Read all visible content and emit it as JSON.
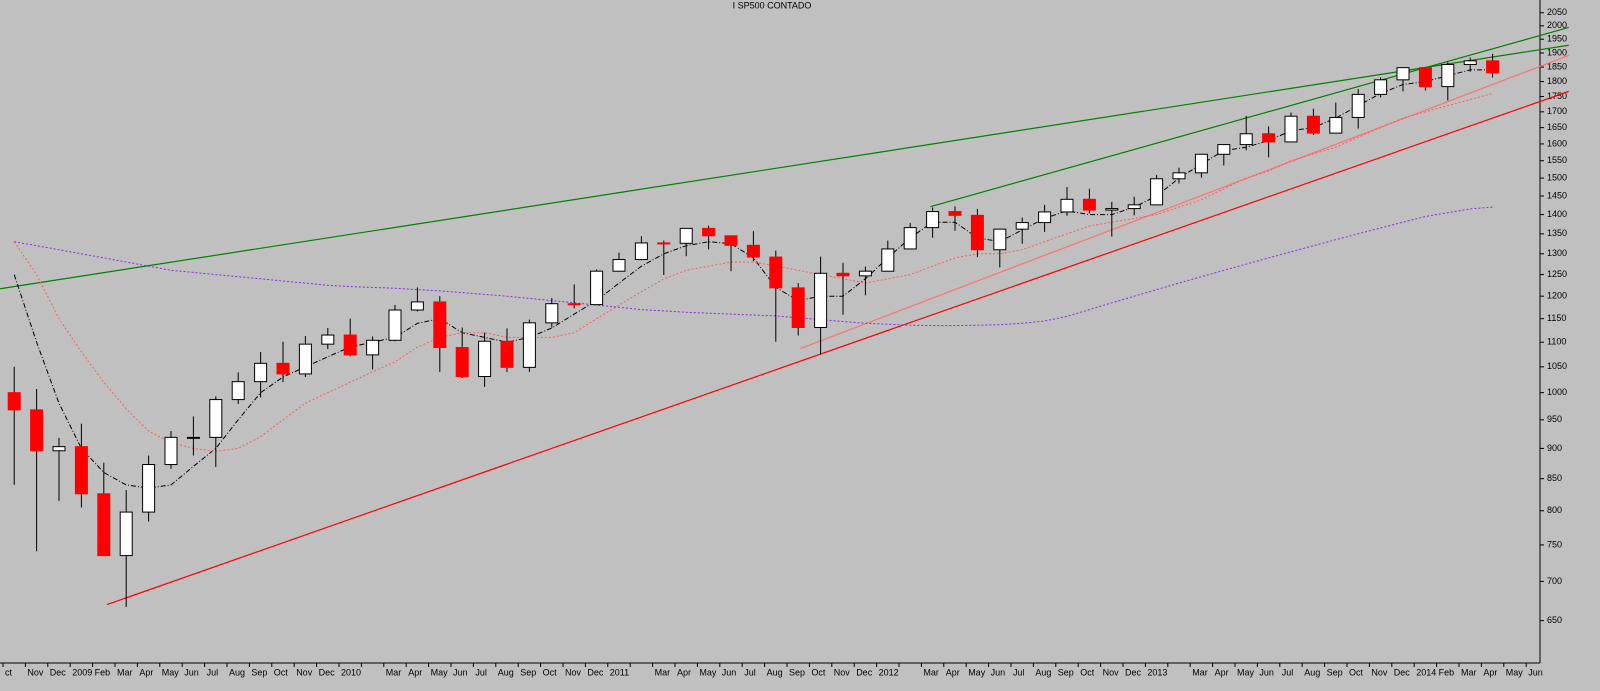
{
  "chart_data": {
    "type": "candlestick",
    "title": "I SP500 CONTADO",
    "log_scale": true,
    "categories": [
      "ct",
      "Nov",
      "Dec",
      "2009",
      "Feb",
      "Mar",
      "Apr",
      "May",
      "Jun",
      "Jul",
      "Aug",
      "Sep",
      "Oct",
      "Nov",
      "Dec",
      "2010",
      null,
      "Mar",
      "Apr",
      "May",
      "Jun",
      "Jul",
      "Aug",
      "Sep",
      "Oct",
      "Nov",
      "Dec",
      "2011",
      null,
      "Mar",
      "Apr",
      "May",
      "Jun",
      "Jul",
      "Aug",
      "Sep",
      "Oct",
      "Nov",
      "Dec",
      "2012",
      null,
      "Mar",
      "Apr",
      "May",
      "Jun",
      "Jul",
      "Aug",
      "Sep",
      "Oct",
      "Nov",
      "Dec",
      "2013",
      null,
      "Mar",
      "Apr",
      "May",
      "Jun",
      "Jul",
      "Aug",
      "Sep",
      "Oct",
      "Nov",
      "Dec",
      "2014",
      "Feb",
      "Mar",
      "Apr",
      "May",
      "Jun"
    ],
    "open": [
      1000,
      968,
      896,
      903,
      826,
      735,
      798,
      873,
      919,
      919,
      987,
      1021,
      1057,
      1036,
      1096,
      1115,
      1074,
      1104,
      1169,
      1187,
      1089,
      1031,
      1102,
      1049,
      1141,
      1183,
      1181,
      1258,
      1286,
      1327,
      1326,
      1364,
      1345,
      1321,
      1292,
      1219,
      1131,
      1253,
      1247,
      1258,
      1312,
      1366,
      1408,
      1398,
      1310,
      1362,
      1379,
      1407,
      1441,
      1412,
      1416,
      1426,
      1498,
      1515,
      1569,
      1598,
      1631,
      1606,
      1686,
      1633,
      1682,
      1757,
      1806,
      1848,
      1783,
      1859,
      1872,
      null,
      null
    ],
    "high": [
      1050,
      1007,
      918,
      943,
      876,
      832,
      888,
      930,
      956,
      993,
      1039,
      1080,
      1101,
      1113,
      1130,
      1150,
      1112,
      1180,
      1220,
      1200,
      1131,
      1120,
      1129,
      1148,
      1196,
      1227,
      1262,
      1303,
      1344,
      1333,
      1364,
      1371,
      1346,
      1357,
      1308,
      1230,
      1293,
      1278,
      1269,
      1333,
      1378,
      1419,
      1422,
      1415,
      1363,
      1392,
      1426,
      1475,
      1470,
      1434,
      1448,
      1509,
      1530,
      1570,
      1598,
      1687,
      1654,
      1698,
      1710,
      1730,
      1775,
      1814,
      1849,
      1850,
      1867,
      1884,
      1897,
      null,
      null
    ],
    "low": [
      840,
      741,
      815,
      805,
      735,
      667,
      784,
      866,
      888,
      869,
      979,
      991,
      1020,
      1030,
      1086,
      1071,
      1045,
      1102,
      1166,
      1040,
      1028,
      1011,
      1040,
      1040,
      1131,
      1173,
      1180,
      1257,
      1284,
      1249,
      1294,
      1311,
      1258,
      1282,
      1101,
      1114,
      1075,
      1159,
      1202,
      1258,
      1312,
      1340,
      1358,
      1292,
      1267,
      1325,
      1355,
      1397,
      1403,
      1343,
      1398,
      1426,
      1485,
      1501,
      1536,
      1581,
      1560,
      1605,
      1627,
      1633,
      1647,
      1747,
      1767,
      1770,
      1737,
      1834,
      1814,
      null,
      null
    ],
    "close": [
      968,
      896,
      903,
      826,
      735,
      798,
      873,
      919,
      919,
      987,
      1021,
      1057,
      1036,
      1096,
      1115,
      1074,
      1104,
      1169,
      1187,
      1089,
      1031,
      1102,
      1049,
      1141,
      1183,
      1181,
      1258,
      1286,
      1327,
      1326,
      1364,
      1345,
      1321,
      1292,
      1219,
      1131,
      1253,
      1247,
      1258,
      1312,
      1366,
      1408,
      1398,
      1310,
      1362,
      1379,
      1407,
      1441,
      1412,
      1416,
      1426,
      1498,
      1515,
      1569,
      1598,
      1631,
      1606,
      1686,
      1633,
      1682,
      1757,
      1806,
      1848,
      1783,
      1859,
      1872,
      1830,
      null,
      null
    ],
    "up_color": "#ffffff",
    "down_color": "#ff0000",
    "series": [
      {
        "color": "#000000",
        "style": "dash-dot",
        "values": [
          1250,
          1100,
          980,
          900,
          860,
          840,
          835,
          840,
          870,
          900,
          950,
          1000,
          1030,
          1050,
          1070,
          1090,
          1100,
          1110,
          1140,
          1150,
          1120,
          1110,
          1100,
          1110,
          1130,
          1160,
          1190,
          1230,
          1270,
          1300,
          1320,
          1330,
          1325,
          1290,
          1220,
          1190,
          1200,
          1200,
          1240,
          1290,
          1340,
          1380,
          1380,
          1340,
          1330,
          1360,
          1390,
          1410,
          1400,
          1400,
          1420,
          1450,
          1500,
          1540,
          1580,
          1590,
          1610,
          1640,
          1650,
          1680,
          1720,
          1760,
          1790,
          1800,
          1820,
          1840,
          1840,
          null,
          null
        ]
      },
      {
        "color": "#ff5a5a",
        "style": "dotted",
        "values": [
          1330,
          1250,
          1150,
          1080,
          1020,
          970,
          930,
          910,
          900,
          895,
          900,
          920,
          950,
          980,
          1000,
          1020,
          1040,
          1060,
          1090,
          1110,
          1120,
          1120,
          1110,
          1110,
          1110,
          1120,
          1150,
          1180,
          1210,
          1240,
          1260,
          1270,
          1280,
          1280,
          1270,
          1260,
          1250,
          1240,
          1230,
          1240,
          1250,
          1270,
          1290,
          1300,
          1300,
          1310,
          1330,
          1350,
          1370,
          1380,
          1390,
          1400,
          1420,
          1440,
          1470,
          1500,
          1520,
          1550,
          1570,
          1590,
          1620,
          1650,
          1680,
          1700,
          1720,
          1740,
          1760,
          null,
          null
        ]
      },
      {
        "color": "#8a2be2",
        "style": "dotted",
        "values": [
          1330,
          1320,
          1310,
          1300,
          1290,
          1280,
          1270,
          1260,
          1255,
          1250,
          1245,
          1240,
          1235,
          1230,
          1225,
          1222,
          1220,
          1218,
          1215,
          1212,
          1208,
          1204,
          1200,
          1195,
          1190,
          1185,
          1180,
          1175,
          1170,
          1167,
          1164,
          1162,
          1160,
          1158,
          1156,
          1152,
          1148,
          1144,
          1140,
          1138,
          1136,
          1135,
          1135,
          1136,
          1137,
          1140,
          1145,
          1155,
          1170,
          1185,
          1200,
          1215,
          1230,
          1245,
          1260,
          1275,
          1290,
          1305,
          1320,
          1335,
          1350,
          1365,
          1380,
          1395,
          1405,
          1415,
          1420,
          null,
          null
        ]
      }
    ],
    "trendlines": [
      {
        "color": "#ff0000",
        "x": [
          4.64,
          69.9
        ],
        "values": [
          670,
          1767
        ]
      },
      {
        "color": "#ff7070",
        "x": [
          35.6,
          69.9
        ],
        "values": [
          1087,
          1891
        ]
      },
      {
        "color": "#008000",
        "x": [
          -0.13,
          69.9
        ],
        "values": [
          1217,
          1928
        ]
      },
      {
        "color": "#008000",
        "x": [
          41.4,
          69.9
        ],
        "values": [
          1421,
          1994
        ]
      }
    ],
    "ylim": [
      600,
      2100
    ],
    "yticks": [
      650,
      700,
      750,
      800,
      850,
      900,
      950,
      1000,
      1050,
      1100,
      1150,
      1200,
      1250,
      1300,
      1350,
      1400,
      1450,
      1500,
      1550,
      1600,
      1650,
      1700,
      1750,
      1800,
      1850,
      1900,
      1950,
      2000,
      2050
    ]
  }
}
